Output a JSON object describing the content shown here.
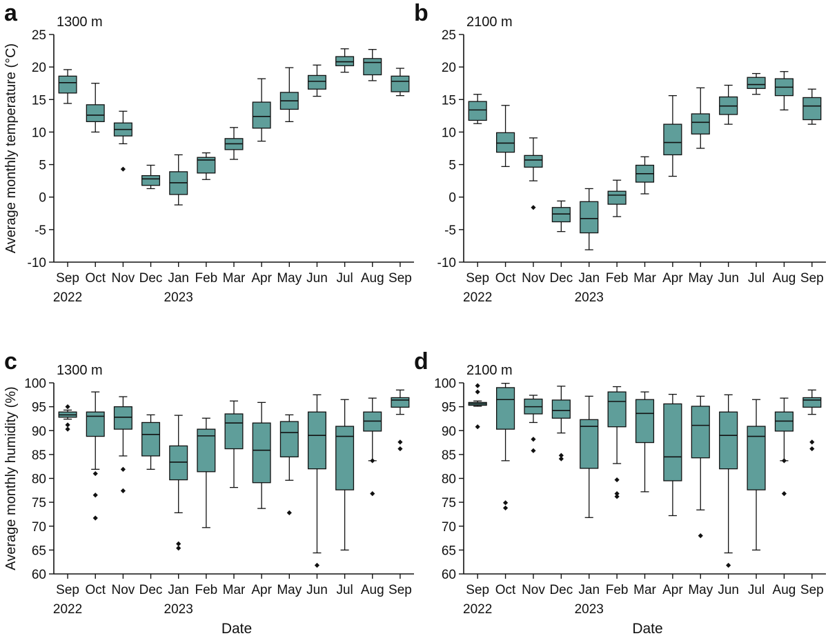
{
  "figure": {
    "xlabel": "Date",
    "month_labels": [
      "Sep",
      "Oct",
      "Nov",
      "Dec",
      "Jan",
      "Feb",
      "Mar",
      "Apr",
      "May",
      "Jun",
      "Jul",
      "Aug",
      "Sep"
    ],
    "year_labels": [
      "2022",
      "2023"
    ]
  },
  "colors": {
    "box_fill": "#5f9e9a",
    "stroke": "#111111",
    "outlier": "#111111"
  },
  "chart_data": [
    {
      "panel_letter": "a",
      "elevation": "1300 m",
      "type": "box",
      "ylabel": "Average monthly temperature (°C)",
      "ylim": [
        -10,
        25
      ],
      "yticks": [
        -10,
        -5,
        0,
        5,
        10,
        15,
        20,
        25
      ],
      "boxes": [
        {
          "min": 14.4,
          "q1": 16.0,
          "median": 17.6,
          "q3": 18.6,
          "max": 19.6,
          "outliers": []
        },
        {
          "min": 10.0,
          "q1": 11.6,
          "median": 12.6,
          "q3": 14.2,
          "max": 17.5,
          "outliers": []
        },
        {
          "min": 8.2,
          "q1": 9.4,
          "median": 10.4,
          "q3": 11.4,
          "max": 13.2,
          "outliers": [
            4.3
          ]
        },
        {
          "min": 1.3,
          "q1": 1.8,
          "median": 2.8,
          "q3": 3.3,
          "max": 4.9,
          "outliers": []
        },
        {
          "min": -1.2,
          "q1": 0.4,
          "median": 2.2,
          "q3": 3.9,
          "max": 6.5,
          "outliers": []
        },
        {
          "min": 2.7,
          "q1": 3.7,
          "median": 5.7,
          "q3": 6.1,
          "max": 6.8,
          "outliers": []
        },
        {
          "min": 5.8,
          "q1": 7.3,
          "median": 8.2,
          "q3": 9.0,
          "max": 10.7,
          "outliers": []
        },
        {
          "min": 8.6,
          "q1": 10.6,
          "median": 12.4,
          "q3": 14.6,
          "max": 18.2,
          "outliers": []
        },
        {
          "min": 11.6,
          "q1": 13.5,
          "median": 14.8,
          "q3": 16.1,
          "max": 19.9,
          "outliers": []
        },
        {
          "min": 15.5,
          "q1": 16.6,
          "median": 17.8,
          "q3": 18.7,
          "max": 20.3,
          "outliers": []
        },
        {
          "min": 19.2,
          "q1": 20.2,
          "median": 20.8,
          "q3": 21.6,
          "max": 22.8,
          "outliers": []
        },
        {
          "min": 17.9,
          "q1": 18.8,
          "median": 20.7,
          "q3": 21.3,
          "max": 22.7,
          "outliers": []
        },
        {
          "min": 15.6,
          "q1": 16.2,
          "median": 17.8,
          "q3": 18.6,
          "max": 19.8,
          "outliers": []
        }
      ]
    },
    {
      "panel_letter": "b",
      "elevation": "2100 m",
      "type": "box",
      "ylabel": "",
      "ylim": [
        -10,
        25
      ],
      "yticks": [
        -10,
        -5,
        0,
        5,
        10,
        15,
        20,
        25
      ],
      "boxes": [
        {
          "min": 11.3,
          "q1": 11.8,
          "median": 13.4,
          "q3": 14.7,
          "max": 15.8,
          "outliers": []
        },
        {
          "min": 4.7,
          "q1": 6.9,
          "median": 8.3,
          "q3": 9.9,
          "max": 14.1,
          "outliers": []
        },
        {
          "min": 2.5,
          "q1": 4.6,
          "median": 5.7,
          "q3": 6.4,
          "max": 9.1,
          "outliers": [
            -1.6
          ]
        },
        {
          "min": -5.3,
          "q1": -3.8,
          "median": -2.6,
          "q3": -1.6,
          "max": -0.6,
          "outliers": []
        },
        {
          "min": -8.1,
          "q1": -5.5,
          "median": -3.3,
          "q3": -0.7,
          "max": 1.3,
          "outliers": []
        },
        {
          "min": -3.0,
          "q1": -1.1,
          "median": 0.3,
          "q3": 0.9,
          "max": 2.6,
          "outliers": []
        },
        {
          "min": 0.5,
          "q1": 2.3,
          "median": 3.6,
          "q3": 4.9,
          "max": 6.2,
          "outliers": []
        },
        {
          "min": 3.2,
          "q1": 6.5,
          "median": 8.4,
          "q3": 11.2,
          "max": 15.6,
          "outliers": []
        },
        {
          "min": 7.5,
          "q1": 9.7,
          "median": 11.5,
          "q3": 12.8,
          "max": 16.8,
          "outliers": []
        },
        {
          "min": 11.2,
          "q1": 12.7,
          "median": 14.0,
          "q3": 15.4,
          "max": 17.2,
          "outliers": []
        },
        {
          "min": 15.8,
          "q1": 16.7,
          "median": 17.3,
          "q3": 18.4,
          "max": 19.0,
          "outliers": []
        },
        {
          "min": 13.4,
          "q1": 15.6,
          "median": 16.9,
          "q3": 18.2,
          "max": 19.3,
          "outliers": []
        },
        {
          "min": 11.2,
          "q1": 11.9,
          "median": 14.0,
          "q3": 15.3,
          "max": 16.6,
          "outliers": []
        }
      ]
    },
    {
      "panel_letter": "c",
      "elevation": "1300 m",
      "type": "box",
      "ylabel": "Average monthly humidity (%)",
      "ylim": [
        60,
        100
      ],
      "yticks": [
        60,
        65,
        70,
        75,
        80,
        85,
        90,
        95,
        100
      ],
      "boxes": [
        {
          "min": 92.4,
          "q1": 92.8,
          "median": 93.3,
          "q3": 93.9,
          "max": 94.3,
          "outliers": [
            95.0,
            91.2,
            90.3
          ]
        },
        {
          "min": 81.9,
          "q1": 88.8,
          "median": 93.0,
          "q3": 93.9,
          "max": 98.1,
          "outliers": [
            81.0,
            76.5,
            71.7
          ]
        },
        {
          "min": 84.7,
          "q1": 90.3,
          "median": 92.8,
          "q3": 95.0,
          "max": 97.1,
          "outliers": [
            81.9,
            77.4
          ]
        },
        {
          "min": 81.9,
          "q1": 84.7,
          "median": 89.2,
          "q3": 91.7,
          "max": 93.3,
          "outliers": []
        },
        {
          "min": 72.8,
          "q1": 79.7,
          "median": 83.4,
          "q3": 86.8,
          "max": 93.2,
          "outliers": [
            66.3,
            65.4
          ]
        },
        {
          "min": 69.7,
          "q1": 81.4,
          "median": 88.9,
          "q3": 90.3,
          "max": 92.6,
          "outliers": []
        },
        {
          "min": 78.1,
          "q1": 86.2,
          "median": 91.6,
          "q3": 93.5,
          "max": 96.2,
          "outliers": []
        },
        {
          "min": 73.7,
          "q1": 79.1,
          "median": 85.9,
          "q3": 91.6,
          "max": 95.9,
          "outliers": []
        },
        {
          "min": 79.6,
          "q1": 84.5,
          "median": 89.6,
          "q3": 91.9,
          "max": 93.3,
          "outliers": [
            72.8
          ]
        },
        {
          "min": 64.4,
          "q1": 82.0,
          "median": 89.0,
          "q3": 93.9,
          "max": 97.5,
          "outliers": [
            61.8
          ]
        },
        {
          "min": 65.0,
          "q1": 77.6,
          "median": 88.8,
          "q3": 90.9,
          "max": 96.5,
          "outliers": []
        },
        {
          "min": 83.7,
          "q1": 89.9,
          "median": 92.0,
          "q3": 93.9,
          "max": 96.8,
          "outliers": [
            83.7,
            76.8
          ]
        },
        {
          "min": 93.4,
          "q1": 94.9,
          "median": 96.4,
          "q3": 96.9,
          "max": 98.5,
          "outliers": [
            87.6,
            86.2
          ]
        }
      ]
    },
    {
      "panel_letter": "d",
      "elevation": "2100 m",
      "type": "box",
      "ylabel": "",
      "ylim": [
        60,
        100
      ],
      "yticks": [
        60,
        65,
        70,
        75,
        80,
        85,
        90,
        95,
        100
      ],
      "boxes": [
        {
          "min": 95.1,
          "q1": 95.3,
          "median": 95.6,
          "q3": 95.9,
          "max": 96.2,
          "outliers": [
            99.4,
            98.1,
            90.8
          ]
        },
        {
          "min": 83.7,
          "q1": 90.3,
          "median": 96.5,
          "q3": 99.0,
          "max": 99.9,
          "outliers": [
            74.9,
            73.8
          ]
        },
        {
          "min": 91.7,
          "q1": 93.5,
          "median": 95.0,
          "q3": 96.6,
          "max": 97.4,
          "outliers": [
            88.2,
            85.8
          ]
        },
        {
          "min": 89.5,
          "q1": 92.6,
          "median": 94.2,
          "q3": 96.4,
          "max": 99.3,
          "outliers": [
            84.8,
            84.1
          ]
        },
        {
          "min": 71.8,
          "q1": 82.1,
          "median": 90.9,
          "q3": 92.3,
          "max": 97.2,
          "outliers": []
        },
        {
          "min": 83.1,
          "q1": 90.8,
          "median": 96.1,
          "q3": 98.1,
          "max": 99.2,
          "outliers": [
            79.7,
            76.8,
            76.2
          ]
        },
        {
          "min": 77.2,
          "q1": 87.5,
          "median": 93.6,
          "q3": 96.5,
          "max": 98.1,
          "outliers": []
        },
        {
          "min": 72.2,
          "q1": 79.5,
          "median": 84.5,
          "q3": 95.6,
          "max": 97.6,
          "outliers": []
        },
        {
          "min": 73.4,
          "q1": 84.3,
          "median": 91.1,
          "q3": 95.1,
          "max": 97.2,
          "outliers": [
            68.0
          ]
        },
        {
          "min": 64.4,
          "q1": 82.0,
          "median": 89.0,
          "q3": 93.9,
          "max": 97.5,
          "outliers": [
            61.8
          ]
        },
        {
          "min": 65.0,
          "q1": 77.6,
          "median": 88.8,
          "q3": 90.9,
          "max": 96.5,
          "outliers": []
        },
        {
          "min": 83.7,
          "q1": 89.9,
          "median": 92.0,
          "q3": 93.9,
          "max": 96.8,
          "outliers": [
            83.7,
            76.8
          ]
        },
        {
          "min": 93.4,
          "q1": 94.9,
          "median": 96.4,
          "q3": 96.9,
          "max": 98.5,
          "outliers": [
            87.6,
            86.2
          ]
        }
      ]
    }
  ]
}
